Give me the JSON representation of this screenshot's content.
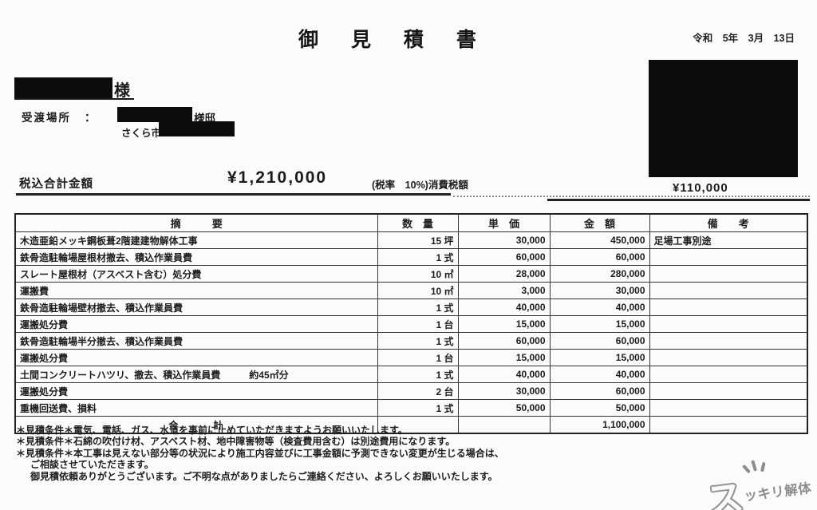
{
  "doc": {
    "title": "御 見 積 書",
    "date": "令和　5年　3月　13日",
    "customer_honorific": "様",
    "delivery": {
      "label": "受渡場所",
      "colon": "：",
      "residence_suffix": "様邸",
      "city": "さくら市"
    },
    "totals": {
      "total_label": "税込合計金額",
      "total_amount": "¥1,210,000",
      "tax_note": "(税率　10%)消費税額",
      "tax_amount": "¥110,000"
    }
  },
  "table": {
    "headers": {
      "desc": "摘　　　要",
      "qty": "数　量",
      "unit_price": "単　価",
      "amount": "金　額",
      "note": "備　　考"
    },
    "rows": [
      {
        "desc": "木造亜鉛メッキ鋼板葺2階建建物解体工事",
        "qty": "15 坪",
        "price": "30,000",
        "amount": "450,000",
        "note": "足場工事別途"
      },
      {
        "desc": "鉄骨造駐輪場屋根材撤去、積込作業員費",
        "qty": "1 式",
        "price": "60,000",
        "amount": "60,000",
        "note": ""
      },
      {
        "desc": "スレート屋根材（アスベスト含む）処分費",
        "qty": "10 ㎡",
        "price": "28,000",
        "amount": "280,000",
        "note": ""
      },
      {
        "desc": "運搬費",
        "qty": "10 ㎡",
        "price": "3,000",
        "amount": "30,000",
        "note": ""
      },
      {
        "desc": "鉄骨造駐輪場壁材撤去、積込作業員費",
        "qty": "1 式",
        "price": "40,000",
        "amount": "40,000",
        "note": ""
      },
      {
        "desc": "運搬処分費",
        "qty": "1 台",
        "price": "15,000",
        "amount": "15,000",
        "note": ""
      },
      {
        "desc": "鉄骨造駐輪場半分撤去、積込作業員費",
        "qty": "1 式",
        "price": "60,000",
        "amount": "60,000",
        "note": ""
      },
      {
        "desc": "運搬処分費",
        "qty": "1 台",
        "price": "15,000",
        "amount": "15,000",
        "note": ""
      },
      {
        "desc": "土間コンクリートハツリ、撤去、積込作業員費　　　約45㎡分",
        "qty": "1 式",
        "price": "40,000",
        "amount": "40,000",
        "note": ""
      },
      {
        "desc": "運搬処分費",
        "qty": "2 台",
        "price": "30,000",
        "amount": "60,000",
        "note": ""
      },
      {
        "desc": "重機回送費、損料",
        "qty": "1 式",
        "price": "50,000",
        "amount": "50,000",
        "note": ""
      }
    ],
    "total": {
      "label": "合　　　計",
      "amount": "1,100,000"
    }
  },
  "notes": {
    "line1": "＊見積条件＊電気、電話、ガス、水道を事前に止めていただきますようお願いいたします。",
    "line2": "＊見積条件＊石綿の吹付け材、アスベスト材、地中障害物等（検査費用含む）は別途費用になります。",
    "line3": "＊見積条件＊本工事は見えない部分等の状況により施工内容並びに工事金額に予測できない変更が生じる場合は、",
    "line4": "ご相談させていただきます。",
    "line5": "御見積依頼ありがとうございます。ご不明な点がありましたらご連絡ください、よろしくお願いいたします。"
  },
  "logo": {
    "big": "ス",
    "rest": "ッキリ解体"
  },
  "colors": {
    "ink": "#1b1b1b",
    "redaction": "#0c0c0c",
    "logo_gray": "#8f8f8f"
  }
}
